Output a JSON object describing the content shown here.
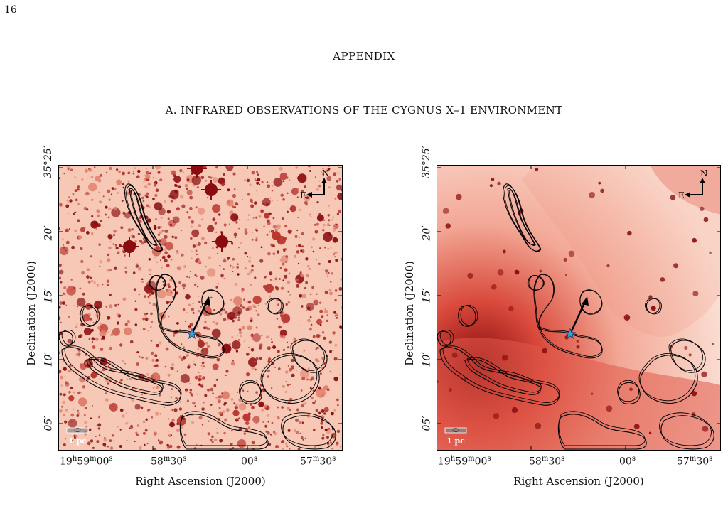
{
  "page_number": "16",
  "appendix_heading": "APPENDIX",
  "section_title": "A. INFRARED OBSERVATIONS OF THE CYGNUS X–1 ENVIRONMENT",
  "panels": [
    {
      "ylabel": "Declination (J2000)",
      "xlabel": "Right Ascension (J2000)",
      "yticks": [
        "35°25′",
        "20′",
        "15′",
        "10′",
        "05′"
      ],
      "xticks": [
        {
          "main": "19",
          "s1": "h",
          "b": "59",
          "s2": "m",
          "c": "00",
          "s3": "s"
        },
        {
          "main": "58",
          "s1": "m",
          "b": "30",
          "s2": "s",
          "c": "",
          "s3": ""
        },
        {
          "main": "00",
          "s1": "s",
          "b": "",
          "s2": "",
          "c": "",
          "s3": ""
        },
        {
          "main": "57",
          "s1": "m",
          "b": "30",
          "s2": "s",
          "c": "",
          "s3": ""
        }
      ],
      "compass_n": "N",
      "compass_e": "E",
      "scale_bar_label": "1 pc",
      "style": "stars"
    },
    {
      "ylabel": "Declination (J2000)",
      "xlabel": "Right Ascension (J2000)",
      "yticks": [
        "35°25′",
        "20′",
        "15′",
        "10′",
        "05′"
      ],
      "xticks": [
        {
          "main": "19",
          "s1": "h",
          "b": "59",
          "s2": "m",
          "c": "00",
          "s3": "s"
        },
        {
          "main": "58",
          "s1": "m",
          "b": "30",
          "s2": "s",
          "c": "",
          "s3": ""
        },
        {
          "main": "00",
          "s1": "s",
          "b": "",
          "s2": "",
          "c": "",
          "s3": ""
        },
        {
          "main": "57",
          "s1": "m",
          "b": "30",
          "s2": "s",
          "c": "",
          "s3": ""
        }
      ],
      "compass_n": "N",
      "compass_e": "E",
      "scale_bar_label": "1 pc",
      "style": "diffuse"
    }
  ],
  "colors": {
    "map_light": "#fbe3d8",
    "map_mid": "#f2917a",
    "map_dark": "#8a0c0f",
    "contour": "#000000",
    "star_marker": "#2aa8e0"
  }
}
